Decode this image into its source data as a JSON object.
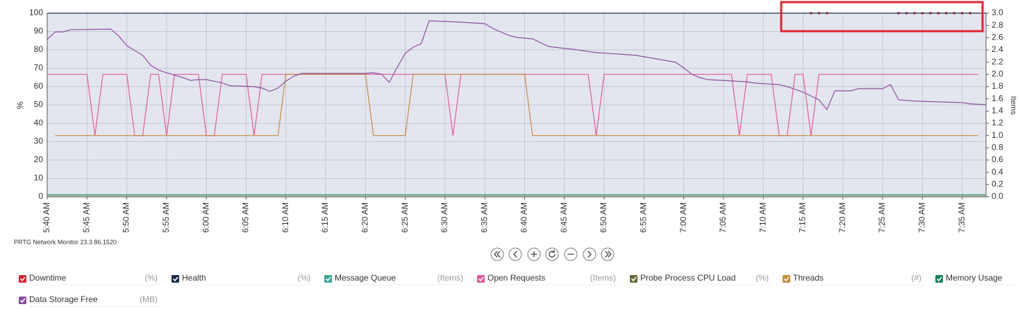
{
  "chart_data": {
    "type": "line",
    "ylabel": "%",
    "y2label": "Items",
    "xlim": [
      "5:40 AM",
      "7:38 AM"
    ],
    "xticks": [
      "5:40 AM",
      "5:45 AM",
      "5:50 AM",
      "5:55 AM",
      "6:00 AM",
      "6:05 AM",
      "6:10 AM",
      "6:15 AM",
      "6:20 AM",
      "6:25 AM",
      "6:30 AM",
      "6:35 AM",
      "6:40 AM",
      "6:45 AM",
      "6:50 AM",
      "6:55 AM",
      "7:00 AM",
      "7:05 AM",
      "7:10 AM",
      "7:15 AM",
      "7:20 AM",
      "7:25 AM",
      "7:30 AM",
      "7:35 AM"
    ],
    "ylim": [
      0,
      100
    ],
    "yticks": [
      0,
      10,
      20,
      30,
      40,
      50,
      60,
      70,
      80,
      90,
      100
    ],
    "y2lim": [
      0,
      3
    ],
    "y2ticks": [
      {
        "value": 0,
        "label": "0.0"
      },
      {
        "value": 0.2,
        "label": "0.2"
      },
      {
        "value": 0.4,
        "label": "0.4"
      },
      {
        "value": 0.6,
        "label": "0.6"
      },
      {
        "value": 0.8,
        "label": "0.8"
      },
      {
        "value": 1,
        "label": "1.0"
      },
      {
        "value": 1.2,
        "label": "1.2"
      },
      {
        "value": 1.4,
        "label": "1.4"
      },
      {
        "value": 1.6,
        "label": "1.6"
      },
      {
        "value": 1.8,
        "label": "1.8"
      },
      {
        "value": 2,
        "label": "2.0"
      },
      {
        "value": 2.2,
        "label": "2.2"
      },
      {
        "value": 2.4,
        "label": "2.4"
      },
      {
        "value": 2.6,
        "label": "2.6"
      },
      {
        "value": 2.8,
        "label": "2.8"
      },
      {
        "value": 3,
        "label": "3.0"
      }
    ],
    "grid": true,
    "series": [
      {
        "name": "Downtime",
        "unit": "(%)",
        "color": "#e0202f",
        "markers_only": true,
        "x": [
          "7:16 AM",
          "7:17 AM",
          "7:18 AM",
          "7:27 AM",
          "7:28 AM",
          "7:29 AM",
          "7:30 AM",
          "7:31 AM",
          "7:32 AM",
          "7:33 AM",
          "7:34 AM",
          "7:35 AM",
          "7:36 AM"
        ],
        "values": [
          100,
          100,
          100,
          100,
          100,
          100,
          100,
          100,
          100,
          100,
          100,
          100,
          100
        ]
      },
      {
        "name": "Health",
        "unit": "(%)",
        "color": "#1b2a4a",
        "x": [
          "5:40 AM",
          "7:38 AM"
        ],
        "values": [
          100,
          100
        ]
      },
      {
        "name": "Message Queue",
        "unit": "(Items)",
        "color": "#3aa59b",
        "axis": "y2",
        "x": [
          "5:40 AM",
          "7:38 AM"
        ],
        "values": [
          0,
          0
        ]
      },
      {
        "name": "Open Requests",
        "unit": "(Items)",
        "color": "#e8579a",
        "axis": "y2",
        "x": [
          "5:40 AM",
          "5:45 AM",
          "5:46 AM",
          "5:47 AM",
          "5:50 AM",
          "5:51 AM",
          "5:52 AM",
          "5:53 AM",
          "5:54 AM",
          "5:55 AM",
          "5:56 AM",
          "5:59 AM",
          "6:00 AM",
          "6:01 AM",
          "6:02 AM",
          "6:05 AM",
          "6:06 AM",
          "6:07 AM",
          "6:30 AM",
          "6:31 AM",
          "6:32 AM",
          "6:48 AM",
          "6:49 AM",
          "6:50 AM",
          "7:06 AM",
          "7:07 AM",
          "7:08 AM",
          "7:11 AM",
          "7:12 AM",
          "7:13 AM",
          "7:14 AM",
          "7:15 AM",
          "7:16 AM",
          "7:17 AM",
          "7:37 AM"
        ],
        "values": [
          2,
          2,
          1,
          2,
          2,
          1,
          1,
          2,
          2,
          1,
          2,
          2,
          1,
          1,
          2,
          2,
          1,
          2,
          2,
          1,
          2,
          2,
          1,
          2,
          2,
          1,
          2,
          2,
          1,
          1,
          2,
          2,
          1,
          2,
          2
        ]
      },
      {
        "name": "Probe Process CPU Load",
        "unit": "(%)",
        "color": "#6b6b3a",
        "x": [
          "5:40 AM",
          "7:38 AM"
        ],
        "values": [
          0,
          0
        ]
      },
      {
        "name": "Threads",
        "unit": "(#)",
        "color": "#c8893a",
        "axis": "y2",
        "x": [
          "5:41 AM",
          "6:09 AM",
          "6:10 AM",
          "6:20 AM",
          "6:21 AM",
          "6:25 AM",
          "6:26 AM",
          "6:40 AM",
          "6:41 AM",
          "7:37 AM"
        ],
        "values": [
          1,
          1,
          2,
          2,
          1,
          1,
          2,
          2,
          1,
          1
        ]
      },
      {
        "name": "Memory Usage",
        "color": "#1a7f5a",
        "x": [
          "5:40 AM",
          "7:38 AM"
        ],
        "values": [
          1,
          1
        ]
      },
      {
        "name": "Data Storage Free",
        "unit": "(MB)",
        "color": "#8b4f9e",
        "x": [
          "5:40 AM",
          "5:41 AM",
          "5:42 AM",
          "5:43 AM",
          "5:48 AM",
          "5:49 AM",
          "5:50 AM",
          "5:52 AM",
          "5:53 AM",
          "5:54 AM",
          "5:55 AM",
          "5:57 AM",
          "5:58 AM",
          "5:59 AM",
          "6:00 AM",
          "6:02 AM",
          "6:03 AM",
          "6:06 AM",
          "6:07 AM",
          "6:08 AM",
          "6:09 AM",
          "6:10 AM",
          "6:11 AM",
          "6:12 AM",
          "6:20 AM",
          "6:21 AM",
          "6:22 AM",
          "6:23 AM",
          "6:24 AM",
          "6:25 AM",
          "6:26 AM",
          "6:27 AM",
          "6:28 AM",
          "6:30 AM",
          "6:32 AM",
          "6:35 AM",
          "6:36 AM",
          "6:38 AM",
          "6:39 AM",
          "6:41 AM",
          "6:43 AM",
          "6:45 AM",
          "6:46 AM",
          "6:49 AM",
          "6:52 AM",
          "6:54 AM",
          "6:56 AM",
          "6:58 AM",
          "6:59 AM",
          "7:00 AM",
          "7:01 AM",
          "7:02 AM",
          "7:03 AM",
          "7:08 AM",
          "7:09 AM",
          "7:12 AM",
          "7:13 AM",
          "7:15 AM",
          "7:17 AM",
          "7:18 AM",
          "7:19 AM",
          "7:21 AM",
          "7:22 AM",
          "7:25 AM",
          "7:26 AM",
          "7:27 AM",
          "7:29 AM",
          "7:32 AM",
          "7:35 AM",
          "7:36 AM",
          "7:38 AM"
        ],
        "values": [
          85.7,
          89.8,
          89.8,
          91,
          91.3,
          87.5,
          82.3,
          77,
          71.7,
          69,
          67.5,
          65,
          63.4,
          63.8,
          63.8,
          62,
          60.4,
          60,
          59.2,
          57.4,
          59.2,
          63,
          65.7,
          67.2,
          67.2,
          67.5,
          66.8,
          62.3,
          70.6,
          78.1,
          81.5,
          83.4,
          95.8,
          95.5,
          95.1,
          94.3,
          91.7,
          87.9,
          86.8,
          86,
          81.9,
          80.8,
          80.4,
          78.5,
          77.7,
          77,
          75.5,
          74,
          73.2,
          70.2,
          66.8,
          64.9,
          63.8,
          62.6,
          61.9,
          61.1,
          60,
          57,
          52.8,
          47.5,
          57.7,
          57.7,
          58.9,
          58.9,
          61.1,
          52.8,
          52.1,
          51.7,
          51.3,
          50.6,
          50.2
        ]
      }
    ]
  },
  "footer": "PRTG Network Monitor 23.3.86.1520"
}
